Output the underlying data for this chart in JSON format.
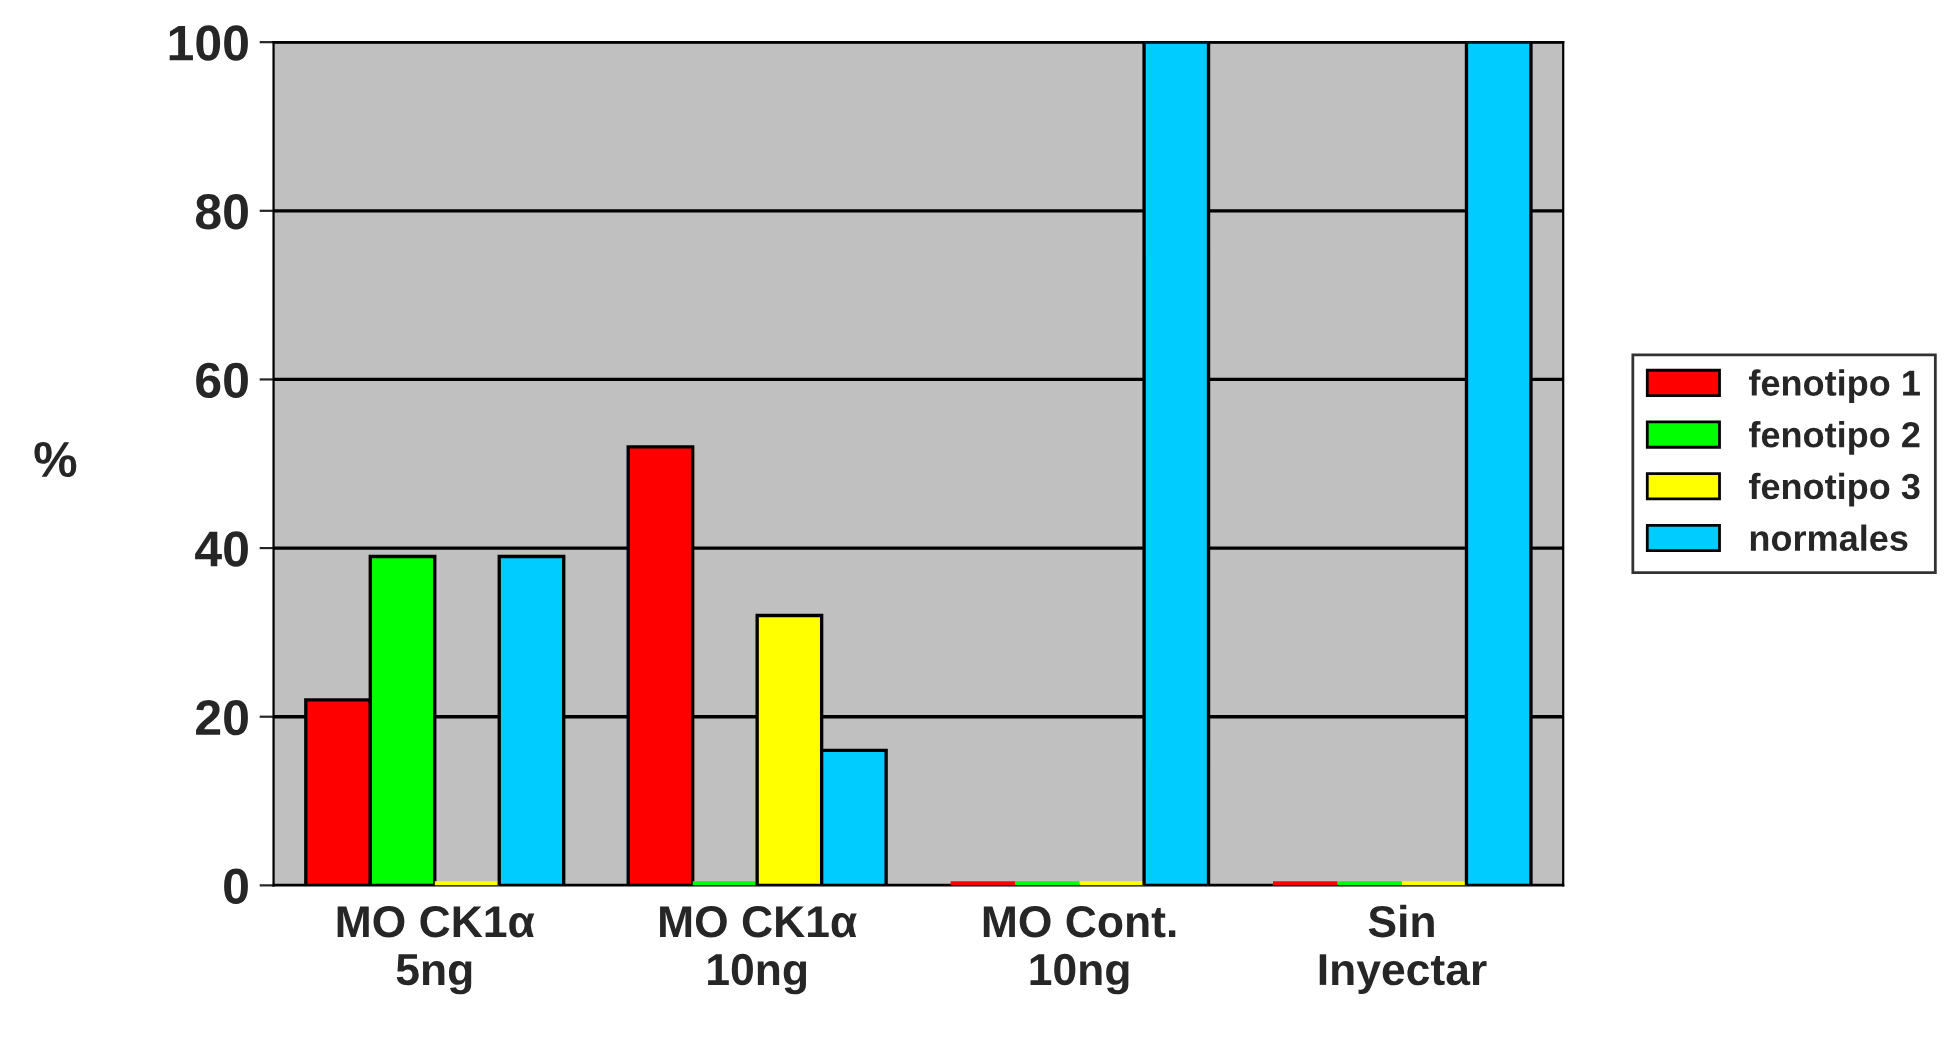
{
  "chart_data": {
    "type": "bar",
    "ylabel": "%",
    "categories": [
      "MO CK1α\n5ng",
      "MO CK1α\n10ng",
      "MO Cont.\n10ng",
      "Sin\nInyectar"
    ],
    "series": [
      {
        "name": "fenotipo 1",
        "color": "#ff0000",
        "values": [
          22,
          52,
          0,
          0
        ]
      },
      {
        "name": "fenotipo 2",
        "color": "#00ff00",
        "values": [
          39,
          0,
          0,
          0
        ]
      },
      {
        "name": "fenotipo 3",
        "color": "#ffff00",
        "values": [
          0,
          32,
          0,
          0
        ]
      },
      {
        "name": "normales",
        "color": "#00ccff",
        "values": [
          39,
          16,
          100,
          100
        ]
      }
    ],
    "ylim": [
      0,
      100
    ],
    "yticks": [
      0,
      20,
      40,
      60,
      80,
      100
    ],
    "grid": "y",
    "legend": "right"
  }
}
